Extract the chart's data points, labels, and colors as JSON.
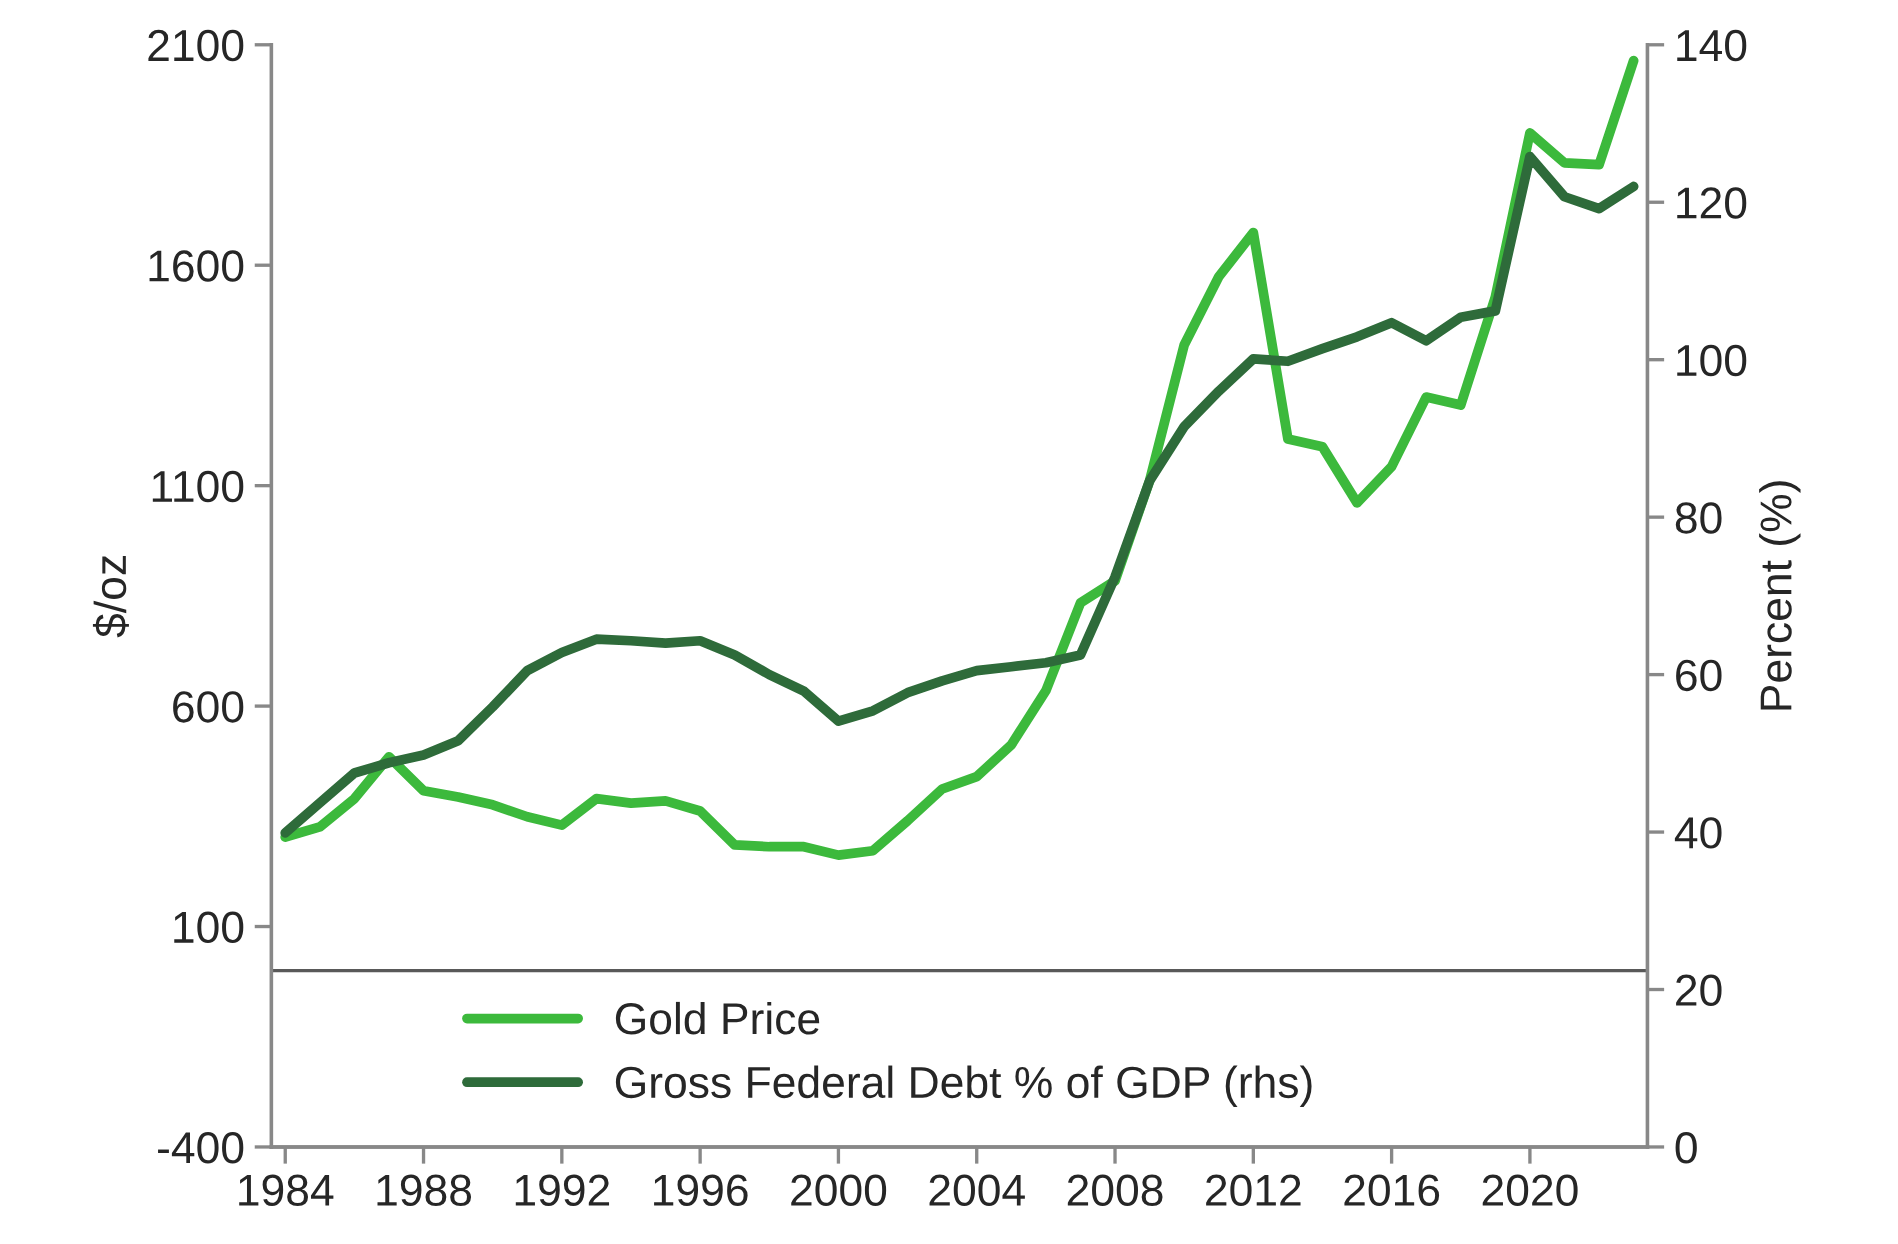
{
  "chart_data": {
    "type": "line",
    "ylabel": "$/oz",
    "y2label": "Percent (%)",
    "x": [
      1984,
      1985,
      1986,
      1987,
      1988,
      1989,
      1990,
      1991,
      1992,
      1993,
      1994,
      1995,
      1996,
      1997,
      1998,
      1999,
      2000,
      2001,
      2002,
      2003,
      2004,
      2005,
      2006,
      2007,
      2008,
      2009,
      2010,
      2011,
      2012,
      2013,
      2014,
      2015,
      2016,
      2017,
      2018,
      2019,
      2020,
      2021,
      2022,
      2023
    ],
    "series": [
      {
        "name": "Gold Price",
        "color": "#3cb93c",
        "values": [
          303,
          326,
          390,
          485,
          408,
          394,
          376,
          349,
          330,
          390,
          380,
          385,
          362,
          285,
          281,
          281,
          262,
          272,
          340,
          412,
          440,
          512,
          635,
          834,
          884,
          1111,
          1419,
          1574,
          1674,
          1206,
          1188,
          1061,
          1143,
          1301,
          1283,
          1528,
          1900,
          1832,
          1828,
          2064
        ]
      },
      {
        "name": "Gross Federal Debt % of GDP (rhs)",
        "color": "#2e6b3a",
        "axis": "y2",
        "values": [
          39.9,
          43.7,
          47.5,
          48.8,
          49.8,
          51.6,
          55.9,
          60.5,
          62.8,
          64.5,
          64.3,
          64.0,
          64.3,
          62.5,
          60.0,
          57.9,
          54.1,
          55.4,
          57.7,
          59.2,
          60.5,
          61.0,
          61.5,
          62.5,
          72.4,
          84.6,
          91.5,
          96.0,
          100.1,
          99.8,
          101.4,
          102.9,
          104.7,
          102.4,
          105.4,
          106.2,
          125.8,
          120.7,
          119.2,
          122.0
        ]
      }
    ],
    "xlim": [
      1983.6,
      2023.4
    ],
    "xticks": [
      1984,
      1988,
      1992,
      1996,
      2000,
      2004,
      2008,
      2012,
      2016,
      2020
    ],
    "ylim": [
      -400,
      2100
    ],
    "yticks": [
      -400,
      100,
      600,
      1100,
      1600,
      2100
    ],
    "y2lim": [
      0,
      140
    ],
    "y2ticks": [
      0,
      20,
      40,
      60,
      80,
      100,
      120,
      140
    ],
    "ref_lines": [
      {
        "axis": "y",
        "value": 0,
        "color": "#595959"
      }
    ],
    "legend": "bottom",
    "grid": false
  }
}
